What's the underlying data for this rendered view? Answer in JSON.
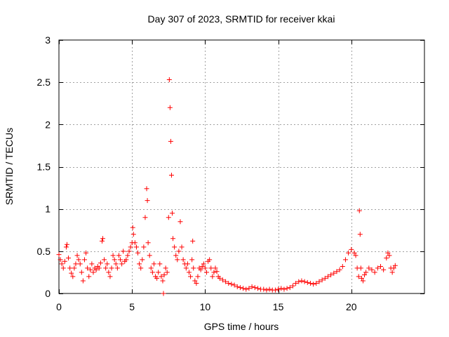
{
  "chart_data": {
    "type": "scatter",
    "title": "Day 307 of 2023, SRMTID for receiver kkai",
    "xlabel": "GPS time / hours",
    "ylabel": "SRMTID / TECUs",
    "xlim": [
      0,
      25
    ],
    "ylim": [
      0,
      3
    ],
    "xticks": [
      0,
      5,
      10,
      15,
      20
    ],
    "yticks": [
      0,
      0.5,
      1,
      1.5,
      2,
      2.5,
      3
    ],
    "xtick_labels": [
      "0",
      "5",
      "10",
      "15",
      "20"
    ],
    "ytick_labels": [
      "0",
      "0.5",
      "1",
      "1.5",
      "2",
      "2.5",
      "3"
    ],
    "grid": true,
    "marker": "+",
    "series": [
      {
        "name": "SRMTID",
        "color": "#ff0000",
        "points": [
          [
            0.0,
            0.46
          ],
          [
            0.1,
            0.4
          ],
          [
            0.2,
            0.35
          ],
          [
            0.3,
            0.3
          ],
          [
            0.4,
            0.38
          ],
          [
            0.5,
            0.55
          ],
          [
            0.55,
            0.58
          ],
          [
            0.65,
            0.42
          ],
          [
            0.75,
            0.3
          ],
          [
            0.85,
            0.24
          ],
          [
            0.95,
            0.2
          ],
          [
            1.05,
            0.3
          ],
          [
            1.15,
            0.35
          ],
          [
            1.25,
            0.45
          ],
          [
            1.35,
            0.4
          ],
          [
            1.45,
            0.35
          ],
          [
            1.55,
            0.25
          ],
          [
            1.65,
            0.15
          ],
          [
            1.75,
            0.4
          ],
          [
            1.85,
            0.48
          ],
          [
            1.95,
            0.3
          ],
          [
            2.05,
            0.2
          ],
          [
            2.15,
            0.28
          ],
          [
            2.25,
            0.35
          ],
          [
            2.35,
            0.25
          ],
          [
            2.45,
            0.3
          ],
          [
            2.55,
            0.28
          ],
          [
            2.65,
            0.32
          ],
          [
            2.75,
            0.3
          ],
          [
            2.85,
            0.36
          ],
          [
            2.95,
            0.62
          ],
          [
            3.0,
            0.65
          ],
          [
            3.1,
            0.4
          ],
          [
            3.2,
            0.3
          ],
          [
            3.3,
            0.35
          ],
          [
            3.4,
            0.25
          ],
          [
            3.5,
            0.2
          ],
          [
            3.6,
            0.3
          ],
          [
            3.7,
            0.45
          ],
          [
            3.8,
            0.4
          ],
          [
            3.9,
            0.35
          ],
          [
            4.0,
            0.3
          ],
          [
            4.1,
            0.45
          ],
          [
            4.2,
            0.4
          ],
          [
            4.3,
            0.35
          ],
          [
            4.4,
            0.5
          ],
          [
            4.5,
            0.38
          ],
          [
            4.6,
            0.4
          ],
          [
            4.7,
            0.45
          ],
          [
            4.8,
            0.5
          ],
          [
            4.9,
            0.55
          ],
          [
            5.0,
            0.6
          ],
          [
            5.05,
            0.78
          ],
          [
            5.1,
            0.7
          ],
          [
            5.2,
            0.6
          ],
          [
            5.3,
            0.55
          ],
          [
            5.4,
            0.48
          ],
          [
            5.5,
            0.35
          ],
          [
            5.6,
            0.3
          ],
          [
            5.7,
            0.4
          ],
          [
            5.8,
            0.55
          ],
          [
            5.9,
            0.9
          ],
          [
            6.0,
            1.24
          ],
          [
            6.05,
            1.1
          ],
          [
            6.1,
            0.6
          ],
          [
            6.2,
            0.45
          ],
          [
            6.3,
            0.3
          ],
          [
            6.4,
            0.25
          ],
          [
            6.5,
            0.35
          ],
          [
            6.6,
            0.2
          ],
          [
            6.7,
            0.18
          ],
          [
            6.8,
            0.25
          ],
          [
            6.9,
            0.35
          ],
          [
            7.0,
            0.2
          ],
          [
            7.1,
            0.15
          ],
          [
            7.15,
            0.0
          ],
          [
            7.2,
            0.22
          ],
          [
            7.3,
            0.3
          ],
          [
            7.4,
            0.25
          ],
          [
            7.5,
            0.9
          ],
          [
            7.55,
            2.53
          ],
          [
            7.6,
            2.2
          ],
          [
            7.65,
            1.8
          ],
          [
            7.7,
            1.4
          ],
          [
            7.75,
            0.95
          ],
          [
            7.8,
            0.65
          ],
          [
            7.9,
            0.55
          ],
          [
            8.0,
            0.45
          ],
          [
            8.1,
            0.4
          ],
          [
            8.2,
            0.5
          ],
          [
            8.3,
            0.85
          ],
          [
            8.4,
            0.55
          ],
          [
            8.5,
            0.4
          ],
          [
            8.6,
            0.35
          ],
          [
            8.7,
            0.3
          ],
          [
            8.8,
            0.35
          ],
          [
            8.9,
            0.25
          ],
          [
            9.0,
            0.2
          ],
          [
            9.1,
            0.4
          ],
          [
            9.15,
            0.62
          ],
          [
            9.2,
            0.3
          ],
          [
            9.3,
            0.15
          ],
          [
            9.4,
            0.12
          ],
          [
            9.5,
            0.2
          ],
          [
            9.6,
            0.3
          ],
          [
            9.7,
            0.28
          ],
          [
            9.8,
            0.32
          ],
          [
            9.9,
            0.35
          ],
          [
            10.0,
            0.3
          ],
          [
            10.1,
            0.25
          ],
          [
            10.2,
            0.38
          ],
          [
            10.3,
            0.4
          ],
          [
            10.4,
            0.3
          ],
          [
            10.5,
            0.2
          ],
          [
            10.6,
            0.25
          ],
          [
            10.7,
            0.3
          ],
          [
            10.8,
            0.26
          ],
          [
            10.9,
            0.2
          ],
          [
            11.0,
            0.18
          ],
          [
            11.2,
            0.16
          ],
          [
            11.4,
            0.14
          ],
          [
            11.6,
            0.12
          ],
          [
            11.8,
            0.11
          ],
          [
            12.0,
            0.1
          ],
          [
            12.2,
            0.08
          ],
          [
            12.4,
            0.07
          ],
          [
            12.6,
            0.06
          ],
          [
            12.8,
            0.05
          ],
          [
            13.0,
            0.06
          ],
          [
            13.2,
            0.08
          ],
          [
            13.4,
            0.07
          ],
          [
            13.6,
            0.06
          ],
          [
            13.8,
            0.05
          ],
          [
            14.0,
            0.05
          ],
          [
            14.2,
            0.04
          ],
          [
            14.4,
            0.05
          ],
          [
            14.6,
            0.04
          ],
          [
            14.8,
            0.04
          ],
          [
            15.0,
            0.05
          ],
          [
            15.2,
            0.06
          ],
          [
            15.4,
            0.05
          ],
          [
            15.6,
            0.06
          ],
          [
            15.8,
            0.07
          ],
          [
            16.0,
            0.09
          ],
          [
            16.2,
            0.12
          ],
          [
            16.4,
            0.14
          ],
          [
            16.6,
            0.15
          ],
          [
            16.8,
            0.14
          ],
          [
            17.0,
            0.13
          ],
          [
            17.2,
            0.12
          ],
          [
            17.4,
            0.11
          ],
          [
            17.6,
            0.12
          ],
          [
            17.8,
            0.14
          ],
          [
            18.0,
            0.16
          ],
          [
            18.2,
            0.18
          ],
          [
            18.4,
            0.2
          ],
          [
            18.6,
            0.22
          ],
          [
            18.8,
            0.24
          ],
          [
            19.0,
            0.26
          ],
          [
            19.2,
            0.28
          ],
          [
            19.4,
            0.32
          ],
          [
            19.6,
            0.4
          ],
          [
            19.8,
            0.48
          ],
          [
            20.0,
            0.52
          ],
          [
            20.2,
            0.48
          ],
          [
            20.3,
            0.45
          ],
          [
            20.4,
            0.3
          ],
          [
            20.5,
            0.2
          ],
          [
            20.55,
            0.98
          ],
          [
            20.6,
            0.7
          ],
          [
            20.65,
            0.3
          ],
          [
            20.7,
            0.18
          ],
          [
            20.8,
            0.15
          ],
          [
            20.9,
            0.22
          ],
          [
            21.0,
            0.25
          ],
          [
            21.2,
            0.3
          ],
          [
            21.4,
            0.28
          ],
          [
            21.6,
            0.25
          ],
          [
            21.8,
            0.3
          ],
          [
            22.0,
            0.32
          ],
          [
            22.2,
            0.28
          ],
          [
            22.4,
            0.42
          ],
          [
            22.5,
            0.48
          ],
          [
            22.6,
            0.45
          ],
          [
            22.7,
            0.3
          ],
          [
            22.8,
            0.25
          ],
          [
            22.9,
            0.3
          ],
          [
            23.0,
            0.33
          ]
        ]
      }
    ]
  }
}
